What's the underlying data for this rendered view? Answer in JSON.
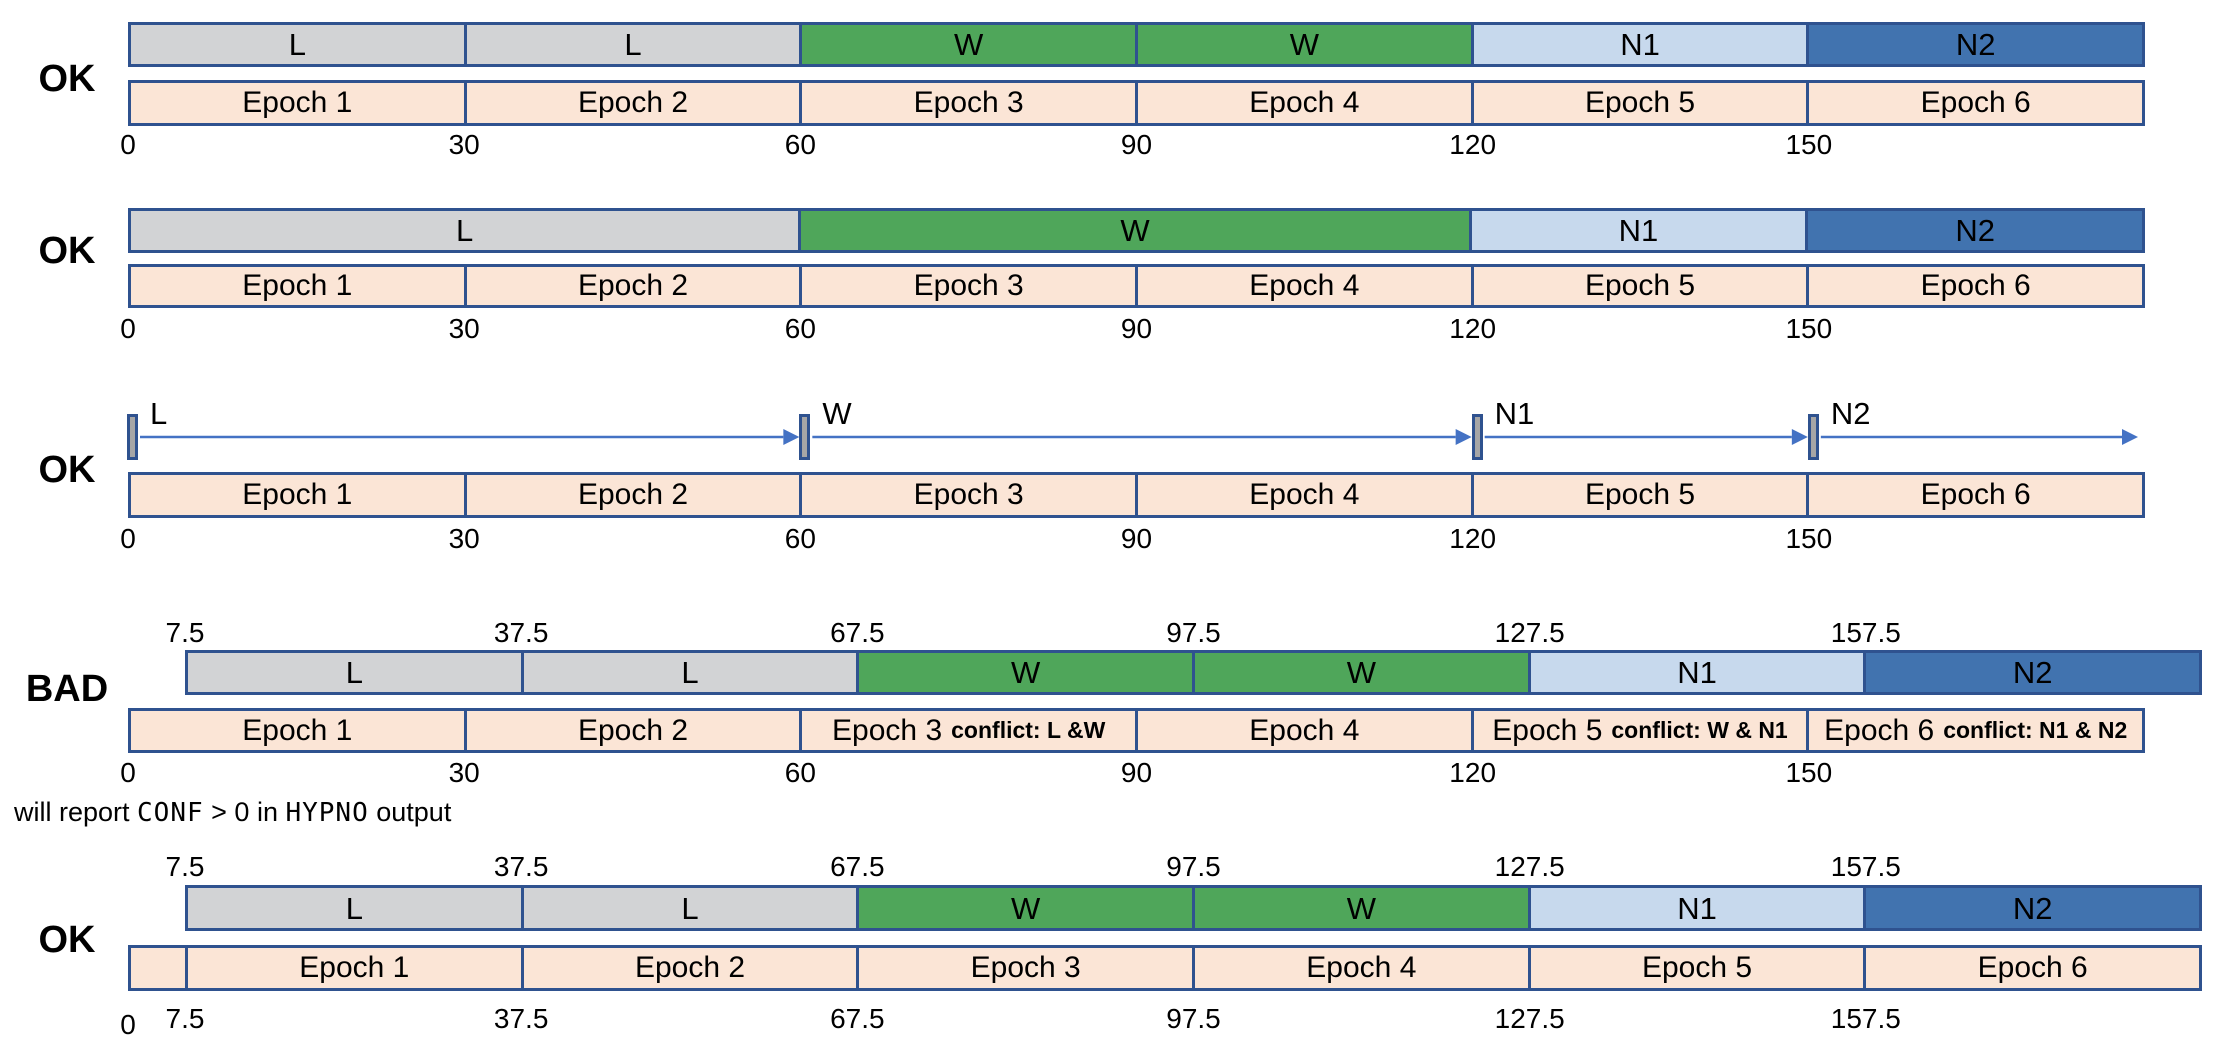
{
  "palette": {
    "stage_lights": "#d2d3d5",
    "stage_wake": "#4fa65a",
    "stage_n1": "#c7d9ed",
    "stage_n2": "#4173af",
    "epoch_fill": "#fbe5d6",
    "border_navy": "#2f528f",
    "marker_gray": "#a6a6a6",
    "arrow_blue": "#4472c4",
    "text": "#000000"
  },
  "rows": [
    {
      "verdict": "OK",
      "stages": [
        {
          "label": "L",
          "stage": "stage_lights",
          "span": 1
        },
        {
          "label": "L",
          "stage": "stage_lights",
          "span": 1
        },
        {
          "label": "W",
          "stage": "stage_wake",
          "span": 1
        },
        {
          "label": "W",
          "stage": "stage_wake",
          "span": 1
        },
        {
          "label": "N1",
          "stage": "stage_n1",
          "span": 1
        },
        {
          "label": "N2",
          "stage": "stage_n2",
          "span": 1
        }
      ],
      "epochs": [
        {
          "label": "Epoch 1"
        },
        {
          "label": "Epoch 2"
        },
        {
          "label": "Epoch 3"
        },
        {
          "label": "Epoch 4"
        },
        {
          "label": "Epoch 5"
        },
        {
          "label": "Epoch 6"
        }
      ],
      "bottom_ticks": [
        "0",
        "30",
        "60",
        "90",
        "120",
        "150"
      ]
    },
    {
      "verdict": "OK",
      "stages": [
        {
          "label": "L",
          "stage": "stage_lights",
          "span": 2
        },
        {
          "label": "W",
          "stage": "stage_wake",
          "span": 2
        },
        {
          "label": "N1",
          "stage": "stage_n1",
          "span": 1
        },
        {
          "label": "N2",
          "stage": "stage_n2",
          "span": 1
        }
      ],
      "epochs": [
        {
          "label": "Epoch 1"
        },
        {
          "label": "Epoch 2"
        },
        {
          "label": "Epoch 3"
        },
        {
          "label": "Epoch 4"
        },
        {
          "label": "Epoch 5"
        },
        {
          "label": "Epoch 6"
        }
      ],
      "bottom_ticks": [
        "0",
        "30",
        "60",
        "90",
        "120",
        "150"
      ]
    },
    {
      "verdict": "OK",
      "events": [
        {
          "label": "L",
          "pos": 0
        },
        {
          "label": "W",
          "pos": 2
        },
        {
          "label": "N1",
          "pos": 4
        },
        {
          "label": "N2",
          "pos": 5
        }
      ],
      "epochs": [
        {
          "label": "Epoch 1"
        },
        {
          "label": "Epoch 2"
        },
        {
          "label": "Epoch 3"
        },
        {
          "label": "Epoch 4"
        },
        {
          "label": "Epoch 5"
        },
        {
          "label": "Epoch 6"
        }
      ],
      "bottom_ticks": [
        "0",
        "30",
        "60",
        "90",
        "120",
        "150"
      ]
    },
    {
      "verdict": "BAD",
      "top_ticks": [
        "7.5",
        "37.5",
        "67.5",
        "97.5",
        "127.5",
        "157.5"
      ],
      "stages": [
        {
          "label": "L",
          "stage": "stage_lights",
          "span": 1
        },
        {
          "label": "L",
          "stage": "stage_lights",
          "span": 1
        },
        {
          "label": "W",
          "stage": "stage_wake",
          "span": 1
        },
        {
          "label": "W",
          "stage": "stage_wake",
          "span": 1
        },
        {
          "label": "N1",
          "stage": "stage_n1",
          "span": 1
        },
        {
          "label": "N2",
          "stage": "stage_n2",
          "span": 1
        }
      ],
      "epochs": [
        {
          "label": "Epoch 1"
        },
        {
          "label": "Epoch 2"
        },
        {
          "label": "Epoch 3",
          "conflict": "conflict: L &W"
        },
        {
          "label": "Epoch 4"
        },
        {
          "label": "Epoch 5",
          "conflict": "conflict: W & N1"
        },
        {
          "label": "Epoch 6",
          "conflict": "conflict: N1 & N2"
        }
      ],
      "bottom_ticks": [
        "0",
        "30",
        "60",
        "90",
        "120",
        "150"
      ]
    },
    {
      "verdict": "OK",
      "top_ticks": [
        "7.5",
        "37.5",
        "67.5",
        "97.5",
        "127.5",
        "157.5"
      ],
      "stages": [
        {
          "label": "L",
          "stage": "stage_lights",
          "span": 1
        },
        {
          "label": "L",
          "stage": "stage_lights",
          "span": 1
        },
        {
          "label": "W",
          "stage": "stage_wake",
          "span": 1
        },
        {
          "label": "W",
          "stage": "stage_wake",
          "span": 1
        },
        {
          "label": "N1",
          "stage": "stage_n1",
          "span": 1
        },
        {
          "label": "N2",
          "stage": "stage_n2",
          "span": 1
        }
      ],
      "stub_epoch": {
        "label": ""
      },
      "epochs": [
        {
          "label": "Epoch 1"
        },
        {
          "label": "Epoch 2"
        },
        {
          "label": "Epoch 3"
        },
        {
          "label": "Epoch 4"
        },
        {
          "label": "Epoch 5"
        },
        {
          "label": "Epoch 6"
        }
      ],
      "bottom_ticks": [
        "0",
        "7.5",
        "37.5",
        "67.5",
        "97.5",
        "127.5",
        "157.5"
      ]
    }
  ],
  "note": {
    "parts": [
      {
        "text": "will report ",
        "code": false
      },
      {
        "text": "CONF",
        "code": true
      },
      {
        "text": " > 0 in ",
        "code": false
      },
      {
        "text": "HYPNO",
        "code": true
      },
      {
        "text": " output",
        "code": false
      }
    ]
  }
}
